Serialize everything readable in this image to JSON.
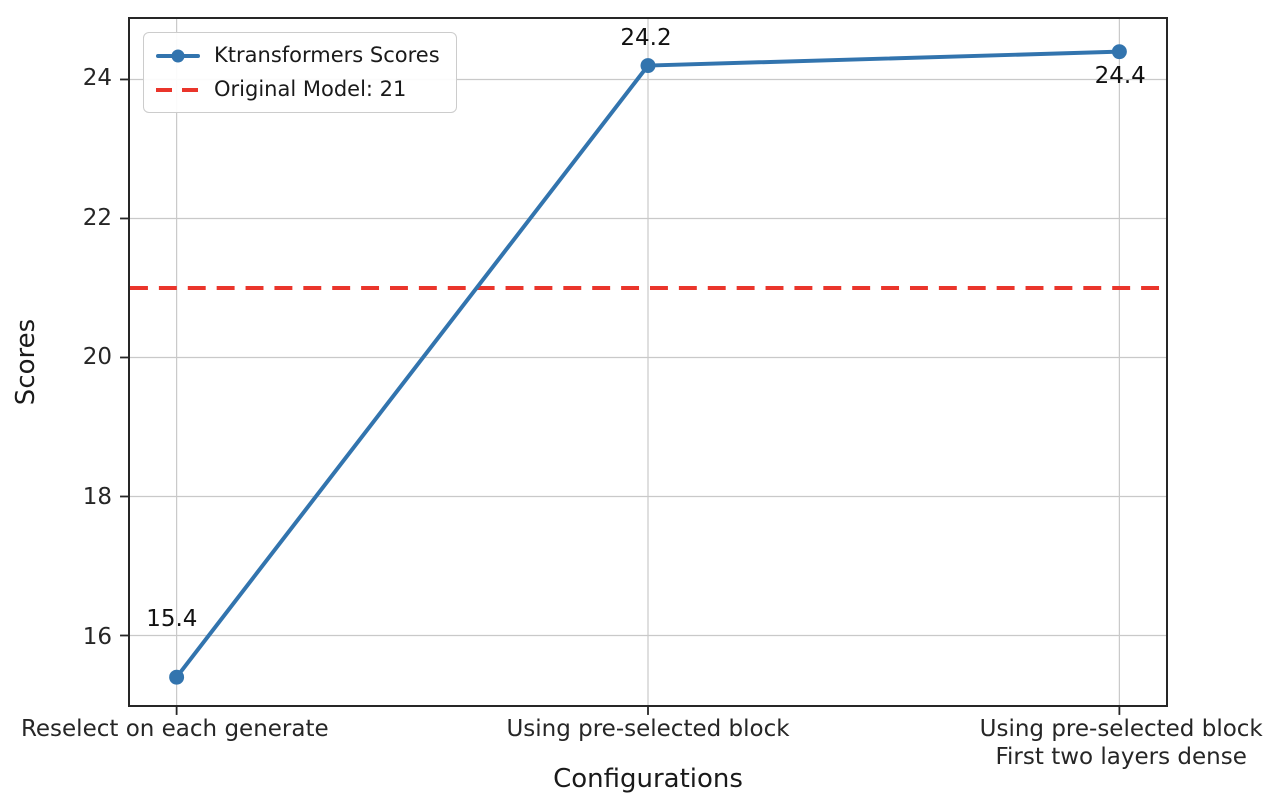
{
  "chart_data": {
    "type": "line",
    "title": "",
    "xlabel": "Configurations",
    "ylabel": "Scores",
    "categories": [
      "Reselect on each generate",
      "Using pre-selected block",
      "Using pre-selected block\nFirst two layers dense"
    ],
    "series": [
      {
        "name": "Ktransformers Scores",
        "values": [
          15.4,
          24.2,
          24.4
        ],
        "color": "#3274ae",
        "marker": "circle",
        "line_width": 4,
        "point_labels": [
          "15.4",
          "24.2",
          "24.4"
        ],
        "point_label_offsets": [
          [
            -3,
            -60
          ],
          [
            -2,
            -26
          ],
          [
            -1,
            26
          ]
        ]
      }
    ],
    "ref_line": {
      "label": "Original Model: 21",
      "value": 21,
      "color": "#ea352b",
      "style": "dashed",
      "line_width": 4
    },
    "ylim": [
      15.0,
      24.87
    ],
    "yticks": [
      16,
      18,
      20,
      22,
      24
    ],
    "x_margin_frac": 0.045,
    "grid": true,
    "grid_color": "#c9c9c9",
    "spine_color": "#262626",
    "tick_color": "#262626",
    "legend_position": "upper-left",
    "background": "#ffffff"
  }
}
